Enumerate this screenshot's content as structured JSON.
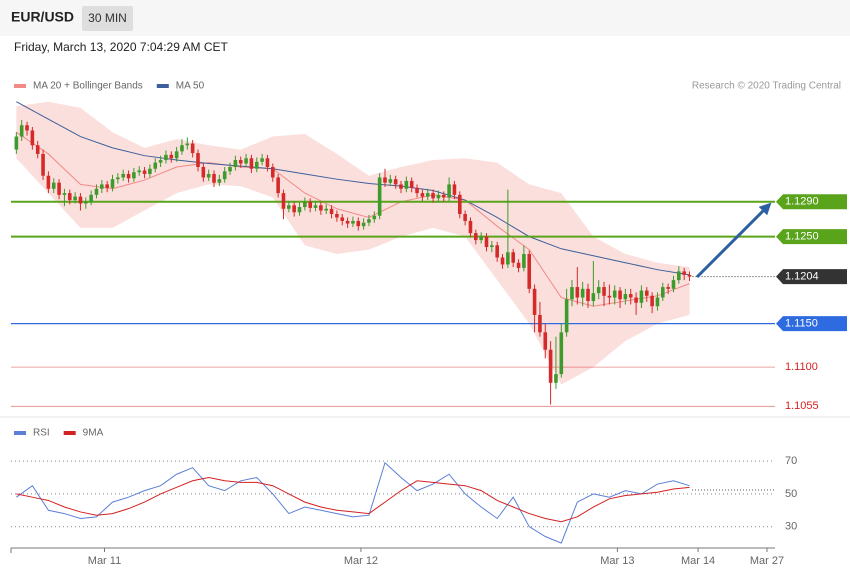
{
  "header": {
    "symbol": "EUR/USD",
    "interval": "30 MIN",
    "timestamp": "Friday, March 13, 2020 7:04:29 AM CET"
  },
  "chart_data": [
    {
      "type": "candlestick",
      "credit": "Research © 2020 Trading Central",
      "up_color": "#3d9b2b",
      "down_color": "#d42a2a",
      "xlim": [
        -1,
        142
      ],
      "ylim": [
        1.1045,
        1.1407
      ],
      "candles": [
        [
          1.135,
          1.137,
          1.1345,
          1.1365
        ],
        [
          1.1365,
          1.1384,
          1.136,
          1.1378
        ],
        [
          1.1378,
          1.1382,
          1.1366,
          1.1372
        ],
        [
          1.1372,
          1.1376,
          1.135,
          1.1355
        ],
        [
          1.1355,
          1.136,
          1.134,
          1.1345
        ],
        [
          1.1345,
          1.135,
          1.1315,
          1.132
        ],
        [
          1.132,
          1.1325,
          1.13,
          1.1305
        ],
        [
          1.1305,
          1.1317,
          1.13,
          1.1312
        ],
        [
          1.1312,
          1.1316,
          1.1293,
          1.1298
        ],
        [
          1.1298,
          1.1305,
          1.1285,
          1.13
        ],
        [
          1.13,
          1.1304,
          1.1287,
          1.1292
        ],
        [
          1.1292,
          1.1301,
          1.1288,
          1.1296
        ],
        [
          1.1296,
          1.13,
          1.128,
          1.1288
        ],
        [
          1.1288,
          1.1295,
          1.1282,
          1.129
        ],
        [
          1.129,
          1.1303,
          1.1286,
          1.1298
        ],
        [
          1.1298,
          1.131,
          1.1294,
          1.1305
        ],
        [
          1.1305,
          1.1315,
          1.13,
          1.131
        ],
        [
          1.131,
          1.1314,
          1.1301,
          1.1306
        ],
        [
          1.1306,
          1.1321,
          1.1302,
          1.1316
        ],
        [
          1.1316,
          1.1323,
          1.1311,
          1.1318
        ],
        [
          1.1318,
          1.1327,
          1.1314,
          1.1322
        ],
        [
          1.1322,
          1.1326,
          1.1312,
          1.1317
        ],
        [
          1.1317,
          1.1329,
          1.1313,
          1.1324
        ],
        [
          1.1324,
          1.1331,
          1.132,
          1.1326
        ],
        [
          1.1326,
          1.133,
          1.1317,
          1.1322
        ],
        [
          1.1322,
          1.1333,
          1.1318,
          1.1328
        ],
        [
          1.1328,
          1.134,
          1.1324,
          1.1335
        ],
        [
          1.1335,
          1.1343,
          1.133,
          1.1338
        ],
        [
          1.1338,
          1.1349,
          1.1334,
          1.1344
        ],
        [
          1.1344,
          1.1348,
          1.1335,
          1.134
        ],
        [
          1.134,
          1.1353,
          1.1336,
          1.1348
        ],
        [
          1.1348,
          1.1362,
          1.1344,
          1.1355
        ],
        [
          1.1355,
          1.1364,
          1.135,
          1.1357
        ],
        [
          1.1357,
          1.1361,
          1.1341,
          1.1346
        ],
        [
          1.1346,
          1.135,
          1.1325,
          1.133
        ],
        [
          1.133,
          1.1334,
          1.1313,
          1.1318
        ],
        [
          1.1318,
          1.1327,
          1.1314,
          1.1322
        ],
        [
          1.1322,
          1.1326,
          1.1307,
          1.1312
        ],
        [
          1.1312,
          1.1321,
          1.1308,
          1.1316
        ],
        [
          1.1316,
          1.133,
          1.1312,
          1.1325
        ],
        [
          1.1325,
          1.1335,
          1.1321,
          1.133
        ],
        [
          1.133,
          1.1343,
          1.1326,
          1.1338
        ],
        [
          1.1338,
          1.1342,
          1.1329,
          1.1334
        ],
        [
          1.1334,
          1.1345,
          1.133,
          1.134
        ],
        [
          1.134,
          1.1344,
          1.1323,
          1.1328
        ],
        [
          1.1328,
          1.1341,
          1.1324,
          1.1336
        ],
        [
          1.1336,
          1.1345,
          1.1332,
          1.134
        ],
        [
          1.134,
          1.1344,
          1.1325,
          1.133
        ],
        [
          1.133,
          1.1334,
          1.1313,
          1.1318
        ],
        [
          1.1318,
          1.1322,
          1.1295,
          1.13
        ],
        [
          1.13,
          1.1304,
          1.127,
          1.1282
        ],
        [
          1.1282,
          1.1291,
          1.1278,
          1.1286
        ],
        [
          1.1286,
          1.129,
          1.1273,
          1.1278
        ],
        [
          1.1278,
          1.1289,
          1.1274,
          1.1284
        ],
        [
          1.1284,
          1.1295,
          1.128,
          1.129
        ],
        [
          1.129,
          1.1294,
          1.1278,
          1.1283
        ],
        [
          1.1283,
          1.1291,
          1.1279,
          1.1286
        ],
        [
          1.1286,
          1.129,
          1.1275,
          1.128
        ],
        [
          1.128,
          1.1287,
          1.1276,
          1.1282
        ],
        [
          1.1282,
          1.1286,
          1.1271,
          1.1276
        ],
        [
          1.1276,
          1.128,
          1.1267,
          1.1272
        ],
        [
          1.1272,
          1.1276,
          1.1263,
          1.1268
        ],
        [
          1.1268,
          1.1272,
          1.126,
          1.1265
        ],
        [
          1.1265,
          1.1273,
          1.1261,
          1.1268
        ],
        [
          1.1268,
          1.1272,
          1.1257,
          1.1262
        ],
        [
          1.1262,
          1.1271,
          1.1258,
          1.1266
        ],
        [
          1.1266,
          1.1275,
          1.1262,
          1.127
        ],
        [
          1.127,
          1.1279,
          1.1266,
          1.1274
        ],
        [
          1.1274,
          1.1323,
          1.127,
          1.1318
        ],
        [
          1.1318,
          1.1328,
          1.1307,
          1.1312
        ],
        [
          1.1312,
          1.1321,
          1.1308,
          1.1316
        ],
        [
          1.1316,
          1.132,
          1.1305,
          1.131
        ],
        [
          1.131,
          1.1314,
          1.13,
          1.1305
        ],
        [
          1.1305,
          1.1319,
          1.1301,
          1.1314
        ],
        [
          1.1314,
          1.1318,
          1.1301,
          1.1306
        ],
        [
          1.1306,
          1.131,
          1.1295,
          1.13
        ],
        [
          1.13,
          1.1304,
          1.1291,
          1.1296
        ],
        [
          1.1296,
          1.1305,
          1.1292,
          1.13
        ],
        [
          1.13,
          1.1304,
          1.1289,
          1.1294
        ],
        [
          1.1294,
          1.1303,
          1.129,
          1.1298
        ],
        [
          1.1298,
          1.1302,
          1.129,
          1.1295
        ],
        [
          1.1295,
          1.1318,
          1.1291,
          1.131
        ],
        [
          1.131,
          1.1314,
          1.1293,
          1.1298
        ],
        [
          1.1298,
          1.1302,
          1.1271,
          1.1276
        ],
        [
          1.1276,
          1.128,
          1.1263,
          1.1268
        ],
        [
          1.1268,
          1.1272,
          1.1249,
          1.1254
        ],
        [
          1.1254,
          1.1258,
          1.1241,
          1.1246
        ],
        [
          1.1246,
          1.1255,
          1.1242,
          1.125
        ],
        [
          1.125,
          1.1254,
          1.1233,
          1.1238
        ],
        [
          1.1238,
          1.1245,
          1.1232,
          1.124
        ],
        [
          1.124,
          1.1244,
          1.1221,
          1.1226
        ],
        [
          1.1226,
          1.123,
          1.1213,
          1.1218
        ],
        [
          1.1218,
          1.1304,
          1.1214,
          1.1232
        ],
        [
          1.1232,
          1.1236,
          1.1215,
          1.122
        ],
        [
          1.122,
          1.1224,
          1.1209,
          1.1214
        ],
        [
          1.1214,
          1.124,
          1.121,
          1.123
        ],
        [
          1.123,
          1.1234,
          1.1185,
          1.119
        ],
        [
          1.119,
          1.1195,
          1.114,
          1.116
        ],
        [
          1.116,
          1.1175,
          1.1135,
          1.114
        ],
        [
          1.114,
          1.115,
          1.111,
          1.112
        ],
        [
          1.112,
          1.113,
          1.1057,
          1.1082
        ],
        [
          1.1082,
          1.1135,
          1.1075,
          1.1092
        ],
        [
          1.1092,
          1.115,
          1.1088,
          1.114
        ],
        [
          1.114,
          1.119,
          1.1135,
          1.1178
        ],
        [
          1.1178,
          1.12,
          1.117,
          1.1192
        ],
        [
          1.1192,
          1.1215,
          1.1172,
          1.118
        ],
        [
          1.118,
          1.1198,
          1.117,
          1.119
        ],
        [
          1.119,
          1.1196,
          1.1168,
          1.1176
        ],
        [
          1.1176,
          1.1222,
          1.117,
          1.1185
        ],
        [
          1.1185,
          1.12,
          1.1178,
          1.1192
        ],
        [
          1.1192,
          1.1198,
          1.117,
          1.1182
        ],
        [
          1.1182,
          1.1195,
          1.1172,
          1.118
        ],
        [
          1.118,
          1.1194,
          1.1172,
          1.1188
        ],
        [
          1.1188,
          1.1192,
          1.1168,
          1.1178
        ],
        [
          1.1178,
          1.119,
          1.1172,
          1.1184
        ],
        [
          1.1184,
          1.119,
          1.1172,
          1.118
        ],
        [
          1.118,
          1.1186,
          1.116,
          1.1174
        ],
        [
          1.1174,
          1.1194,
          1.1168,
          1.1188
        ],
        [
          1.1188,
          1.1192,
          1.1175,
          1.1182
        ],
        [
          1.1182,
          1.1186,
          1.1162,
          1.117
        ],
        [
          1.117,
          1.1186,
          1.1165,
          1.118
        ],
        [
          1.118,
          1.1197,
          1.1176,
          1.1192
        ],
        [
          1.1192,
          1.1196,
          1.1184,
          1.119
        ],
        [
          1.119,
          1.1205,
          1.1186,
          1.12
        ],
        [
          1.12,
          1.1216,
          1.1196,
          1.121
        ],
        [
          1.121,
          1.1214,
          1.12,
          1.1206
        ],
        [
          1.1206,
          1.121,
          1.1199,
          1.1204
        ]
      ],
      "x": [
        0,
        6,
        12,
        18,
        24,
        30,
        36,
        42,
        48,
        54,
        60,
        66,
        72,
        78,
        84,
        90,
        96,
        102,
        108,
        114,
        120,
        126
      ],
      "series": [
        {
          "name": "MA 20 + Bollinger Bands",
          "color": "#f28b85",
          "values": [
            1.137,
            1.1345,
            1.131,
            1.1305,
            1.1315,
            1.133,
            1.1335,
            1.133,
            1.1328,
            1.13,
            1.1282,
            1.1272,
            1.129,
            1.1298,
            1.1292,
            1.1262,
            1.1235,
            1.118,
            1.117,
            1.1176,
            1.1182,
            1.1196
          ],
          "upper": [
            1.14,
            1.1405,
            1.1398,
            1.137,
            1.1352,
            1.1362,
            1.1355,
            1.135,
            1.1365,
            1.1368,
            1.1345,
            1.132,
            1.133,
            1.1338,
            1.134,
            1.1335,
            1.131,
            1.13,
            1.125,
            1.123,
            1.122,
            1.1215
          ],
          "lower": [
            1.134,
            1.13,
            1.126,
            1.126,
            1.128,
            1.13,
            1.131,
            1.1308,
            1.1295,
            1.124,
            1.123,
            1.1235,
            1.125,
            1.126,
            1.125,
            1.12,
            1.115,
            1.108,
            1.11,
            1.113,
            1.115,
            1.116
          ]
        },
        {
          "name": "MA 50",
          "color": "#3d5f9b",
          "values": [
            1.1405,
            1.1385,
            1.1365,
            1.1352,
            1.1343,
            1.1338,
            1.1334,
            1.1331,
            1.1328,
            1.1322,
            1.1316,
            1.1311,
            1.1308,
            1.1303,
            1.1292,
            1.1272,
            1.125,
            1.1236,
            1.1228,
            1.122,
            1.1212,
            1.1206
          ]
        }
      ],
      "levels": [
        {
          "value": 1.129,
          "label": "1.1290",
          "color": "#5aa41b",
          "style": "tag"
        },
        {
          "value": 1.125,
          "label": "1.1250",
          "color": "#5aa41b",
          "style": "tag"
        },
        {
          "value": 1.1204,
          "label": "1.1204",
          "color": "#333333",
          "style": "tag",
          "line": "dotted"
        },
        {
          "value": 1.115,
          "label": "1.1150",
          "color": "#2f6be0",
          "style": "tag"
        },
        {
          "value": 1.11,
          "label": "1.1100",
          "color": "#d41f1f",
          "style": "text"
        },
        {
          "value": 1.1055,
          "label": "1.1055",
          "color": "#d41f1f",
          "style": "text"
        }
      ]
    },
    {
      "type": "line",
      "xlim": [
        -1,
        142
      ],
      "ylim": [
        17,
        78
      ],
      "yticks": [
        70,
        50,
        30
      ],
      "grid": true,
      "x": [
        0,
        3,
        6,
        9,
        12,
        15,
        18,
        21,
        24,
        27,
        30,
        33,
        36,
        39,
        42,
        45,
        48,
        51,
        54,
        57,
        60,
        63,
        66,
        69,
        72,
        75,
        78,
        81,
        84,
        87,
        90,
        93,
        96,
        99,
        102,
        105,
        108,
        111,
        114,
        117,
        120,
        123,
        126
      ],
      "series": [
        {
          "name": "RSI",
          "color": "#5b7fd6",
          "values": [
            48,
            55,
            40,
            38,
            35,
            36,
            45,
            48,
            52,
            55,
            62,
            66,
            55,
            52,
            58,
            60,
            50,
            38,
            42,
            40,
            38,
            36,
            37,
            69,
            60,
            52,
            56,
            62,
            50,
            42,
            35,
            48,
            30,
            24,
            20,
            45,
            50,
            48,
            52,
            50,
            56,
            58,
            55
          ]
        },
        {
          "name": "9MA",
          "color": "#d42020",
          "values": [
            50,
            48,
            46,
            42,
            39,
            37,
            38,
            41,
            45,
            50,
            54,
            58,
            60,
            58,
            57,
            57,
            55,
            50,
            45,
            42,
            40,
            39,
            38,
            45,
            52,
            58,
            57,
            56,
            55,
            52,
            46,
            42,
            38,
            35,
            33,
            36,
            42,
            47,
            49,
            50,
            51,
            53,
            54
          ]
        }
      ],
      "xticks": [
        {
          "value": 16.5,
          "label": "Mar 11"
        },
        {
          "value": 64.5,
          "label": "Mar 12"
        },
        {
          "value": 112.5,
          "label": "Mar 13"
        },
        {
          "value": 127.6,
          "label": "Mar 14"
        },
        {
          "value": 140.5,
          "label": "Mar 27"
        }
      ]
    }
  ]
}
